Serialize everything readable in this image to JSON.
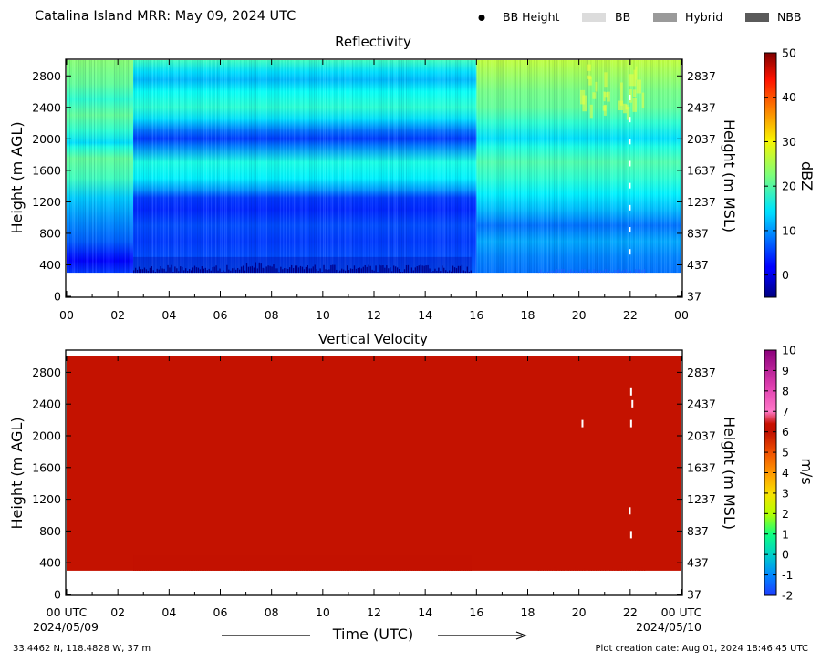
{
  "header": {
    "title": "Catalina Island MRR:  May 09, 2024 UTC",
    "legend": [
      {
        "label": "BB Height",
        "kind": "dot",
        "color": "#000000"
      },
      {
        "label": "BB",
        "kind": "swatch",
        "color": "#dcdcdc"
      },
      {
        "label": "Hybrid",
        "kind": "swatch",
        "color": "#9a9a9a"
      },
      {
        "label": "NBB",
        "kind": "swatch",
        "color": "#5a5a5a"
      }
    ]
  },
  "footer": {
    "location": "33.4462 N, 118.4828 W, 37 m",
    "created": "Plot creation date: Aug 01, 2024 18:46:45 UTC",
    "xlabel": "Time (UTC)",
    "start_date": "2024/05/09",
    "end_date": "2024/05/10"
  },
  "chart_data": [
    {
      "type": "heatmap",
      "title": "Reflectivity",
      "ylabel": "Height (m AGL)",
      "ylabel_right": "Height (m MSL)",
      "xlim": [
        0,
        24
      ],
      "x_ticks": [
        "00",
        "02",
        "04",
        "06",
        "08",
        "10",
        "12",
        "14",
        "16",
        "18",
        "20",
        "22",
        "00"
      ],
      "ylim": [
        0,
        3000
      ],
      "y_ticks": [
        0,
        400,
        800,
        1200,
        1600,
        2000,
        2400,
        2800
      ],
      "y_ticks_right": [
        "37",
        "437",
        "837",
        "1237",
        "1637",
        "2037",
        "2437",
        "2837"
      ],
      "colorbar": {
        "label": "dBZ",
        "range": [
          -5,
          50
        ],
        "ticks": [
          0,
          10,
          20,
          30,
          40,
          50
        ],
        "colormap": "jet"
      },
      "data_bottom_m": 300,
      "data_top_m": 3000,
      "time_segments": [
        {
          "t0": 0,
          "t1": 2.6,
          "rows": [
            [
              300,
              5
            ],
            [
              450,
              2
            ],
            [
              700,
              7
            ],
            [
              1000,
              10
            ],
            [
              1250,
              13
            ],
            [
              1500,
              19
            ],
            [
              1750,
              21
            ],
            [
              1900,
              17
            ],
            [
              1950,
              14
            ],
            [
              2100,
              18
            ],
            [
              2300,
              21
            ],
            [
              2500,
              18
            ],
            [
              2700,
              21
            ],
            [
              3000,
              23
            ]
          ]
        },
        {
          "t0": 2.6,
          "t1": 16,
          "rows": [
            [
              300,
              7
            ],
            [
              500,
              6
            ],
            [
              700,
              5
            ],
            [
              900,
              6
            ],
            [
              1100,
              4
            ],
            [
              1250,
              5
            ],
            [
              1350,
              10
            ],
            [
              1500,
              15
            ],
            [
              1700,
              17
            ],
            [
              1900,
              9
            ],
            [
              2000,
              5
            ],
            [
              2100,
              8
            ],
            [
              2250,
              14
            ],
            [
              2400,
              18
            ],
            [
              2600,
              16
            ],
            [
              2750,
              12
            ],
            [
              2850,
              14
            ],
            [
              3000,
              19
            ]
          ]
        },
        {
          "t0": 16,
          "t1": 24,
          "rows": [
            [
              300,
              8
            ],
            [
              500,
              9
            ],
            [
              700,
              11
            ],
            [
              900,
              8
            ],
            [
              1100,
              12
            ],
            [
              1300,
              15
            ],
            [
              1500,
              18
            ],
            [
              1700,
              20
            ],
            [
              1900,
              17
            ],
            [
              2000,
              14
            ],
            [
              2200,
              18
            ],
            [
              2400,
              21
            ],
            [
              2600,
              22
            ],
            [
              2800,
              24
            ],
            [
              3000,
              26
            ]
          ]
        }
      ],
      "hot_spot_hours": [
        20.5,
        22
      ]
    },
    {
      "type": "heatmap",
      "title": "Vertical Velocity",
      "ylabel": "Height (m AGL)",
      "ylabel_right": "Height (m MSL)",
      "xlim": [
        0,
        24
      ],
      "x_ticks": [
        "00 UTC",
        "02",
        "04",
        "06",
        "08",
        "10",
        "12",
        "14",
        "16",
        "18",
        "20",
        "22",
        "00 UTC"
      ],
      "ylim": [
        0,
        3000
      ],
      "y_ticks": [
        0,
        400,
        800,
        1200,
        1600,
        2000,
        2400,
        2800
      ],
      "y_ticks_right": [
        "37",
        "437",
        "837",
        "1237",
        "1637",
        "2037",
        "2437",
        "2837"
      ],
      "colorbar": {
        "label": "m/s",
        "range": [
          -2,
          10
        ],
        "ticks": [
          -2,
          -1,
          0,
          1,
          2,
          3,
          4,
          5,
          6,
          7,
          8,
          9,
          10
        ],
        "colormap": "velocity"
      },
      "data_bottom_m": 300,
      "data_top_m": 3000,
      "field_value_ms": 5.5
    }
  ]
}
